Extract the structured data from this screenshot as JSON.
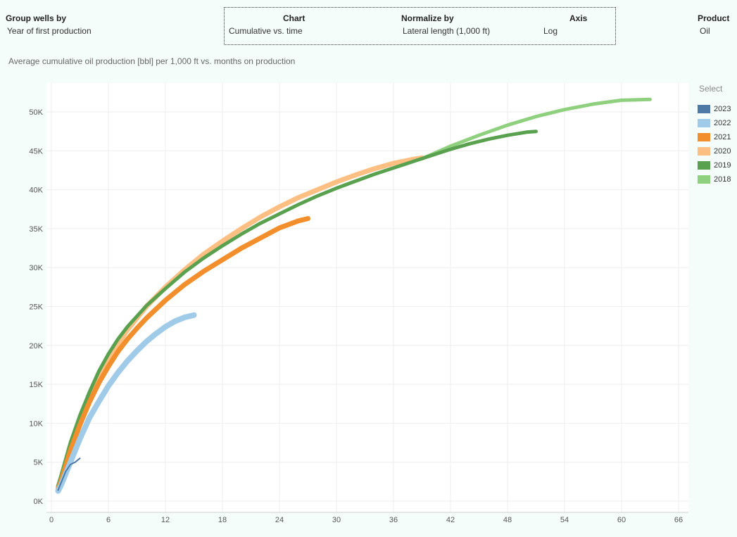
{
  "controls": {
    "group_by": {
      "title": "Group wells by",
      "value": "Year of first production"
    },
    "chart": {
      "title": "Chart",
      "value": "Cumulative vs. time"
    },
    "normalize": {
      "title": "Normalize by",
      "value": "Lateral length (1,000 ft)"
    },
    "axis": {
      "title": "Axis",
      "value": "Log"
    },
    "product": {
      "title": "Product",
      "value": "Oil"
    }
  },
  "subtitle": "Average cumulative oil production [bbl] per 1,000 ft vs. months on production",
  "legend": {
    "title": "Select"
  },
  "chart_data": {
    "type": "line",
    "title": "Average cumulative oil production [bbl] per 1,000 ft vs. months on production",
    "xlabel": "",
    "ylabel": "",
    "xlim": [
      0,
      67
    ],
    "ylim": [
      0,
      52500
    ],
    "x_ticks": [
      0,
      6,
      12,
      18,
      24,
      30,
      36,
      42,
      48,
      54,
      60,
      66
    ],
    "x_tick_labels": [
      "0",
      "6",
      "12",
      "18",
      "24",
      "30",
      "36",
      "42",
      "48",
      "54",
      "60",
      "66"
    ],
    "y_ticks": [
      0,
      5000,
      10000,
      15000,
      20000,
      25000,
      30000,
      35000,
      40000,
      45000,
      50000
    ],
    "y_tick_labels": [
      "0K",
      "5K",
      "10K",
      "15K",
      "20K",
      "25K",
      "30K",
      "35K",
      "40K",
      "45K",
      "50K"
    ],
    "grid": true,
    "legend_position": "right",
    "series": [
      {
        "name": "2018",
        "color": "#8fd07f",
        "width": 5,
        "x": [
          39,
          42,
          45,
          48,
          51,
          54,
          57,
          60,
          63
        ],
        "y": [
          44000,
          45600,
          47000,
          48300,
          49400,
          50300,
          51000,
          51500,
          51600
        ]
      },
      {
        "name": "2020",
        "color": "#ffbe82",
        "width": 7,
        "x": [
          0.7,
          1,
          2,
          3,
          4,
          5,
          6,
          7,
          8,
          9,
          10,
          12,
          14,
          16,
          18,
          20,
          22,
          24,
          26,
          28,
          30,
          32,
          34,
          36,
          38,
          39
        ],
        "y": [
          1800,
          2800,
          7000,
          10500,
          13500,
          16000,
          18300,
          20200,
          22000,
          23500,
          25000,
          27500,
          29700,
          31700,
          33400,
          35000,
          36500,
          37800,
          39000,
          40000,
          41000,
          41900,
          42700,
          43400,
          43900,
          44100
        ]
      },
      {
        "name": "2019",
        "color": "#59a14f",
        "width": 5,
        "x": [
          0.7,
          1,
          2,
          3,
          4,
          5,
          6,
          7,
          8,
          10,
          12,
          14,
          16,
          18,
          20,
          22,
          24,
          26,
          28,
          30,
          32,
          34,
          36,
          38,
          40,
          42,
          44,
          46,
          48,
          50,
          51
        ],
        "y": [
          2000,
          3200,
          7500,
          11000,
          14000,
          16700,
          18900,
          20800,
          22400,
          25100,
          27300,
          29400,
          31200,
          32800,
          34300,
          35700,
          36900,
          38100,
          39200,
          40200,
          41100,
          42000,
          42800,
          43600,
          44400,
          45200,
          45900,
          46500,
          47000,
          47400,
          47500
        ]
      },
      {
        "name": "2021",
        "color": "#f28e2b",
        "width": 7,
        "x": [
          0.7,
          1,
          2,
          3,
          4,
          5,
          6,
          7,
          8,
          9,
          10,
          12,
          14,
          16,
          18,
          20,
          22,
          24,
          26,
          27
        ],
        "y": [
          1500,
          2500,
          6500,
          9800,
          12700,
          15200,
          17300,
          19200,
          20800,
          22200,
          23500,
          25800,
          27800,
          29500,
          31000,
          32500,
          33800,
          35100,
          36000,
          36300
        ]
      },
      {
        "name": "2022",
        "color": "#a0cbe8",
        "width": 8,
        "x": [
          0.7,
          1,
          2,
          3,
          4,
          5,
          6,
          7,
          8,
          9,
          10,
          11,
          12,
          13,
          14,
          15
        ],
        "y": [
          1300,
          2000,
          5000,
          8000,
          10700,
          12800,
          14800,
          16500,
          18000,
          19300,
          20500,
          21500,
          22400,
          23100,
          23600,
          23900
        ]
      },
      {
        "name": "2023",
        "color": "#4e79a7",
        "width": 2,
        "x": [
          0.7,
          1,
          1.5,
          2,
          2.5,
          3
        ],
        "y": [
          1400,
          2300,
          3800,
          4700,
          5000,
          5500
        ]
      }
    ],
    "legend_order": [
      "2023",
      "2022",
      "2021",
      "2020",
      "2019",
      "2018"
    ]
  }
}
